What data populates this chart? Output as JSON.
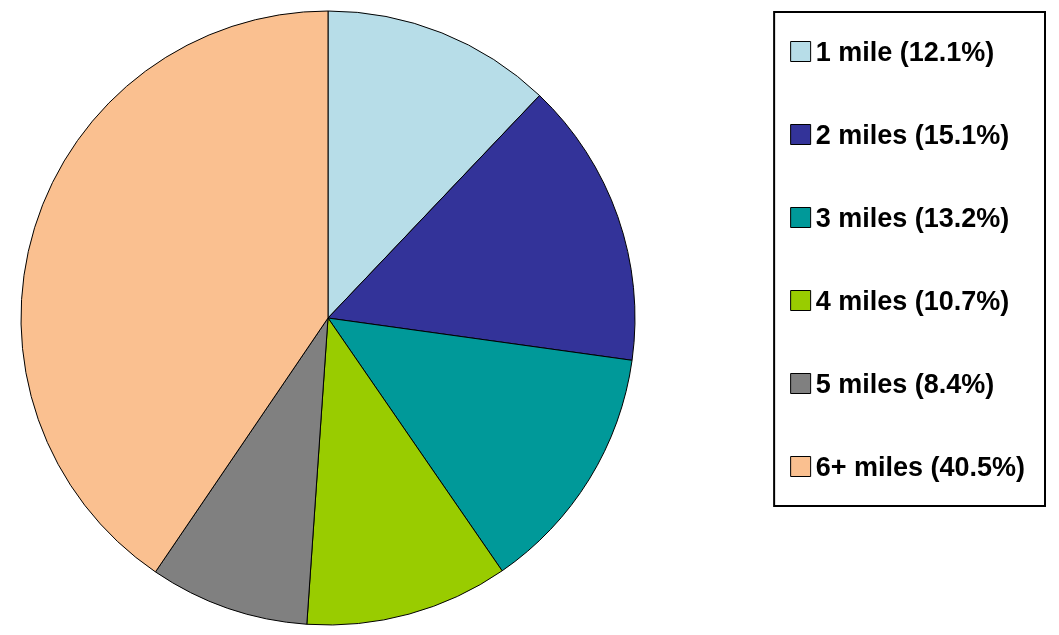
{
  "chart_data": {
    "type": "pie",
    "categories": [
      "1 mile (12.1%)",
      "2 miles (15.1%)",
      "3 miles (13.2%)",
      "4 miles (10.7%)",
      "5 miles (8.4%)",
      "6+ miles (40.5%)"
    ],
    "values": [
      12.1,
      15.1,
      13.2,
      10.7,
      8.4,
      40.5
    ],
    "colors": [
      "#b7dde8",
      "#333399",
      "#009999",
      "#99cc00",
      "#808080",
      "#fac090"
    ],
    "legend": "right"
  }
}
